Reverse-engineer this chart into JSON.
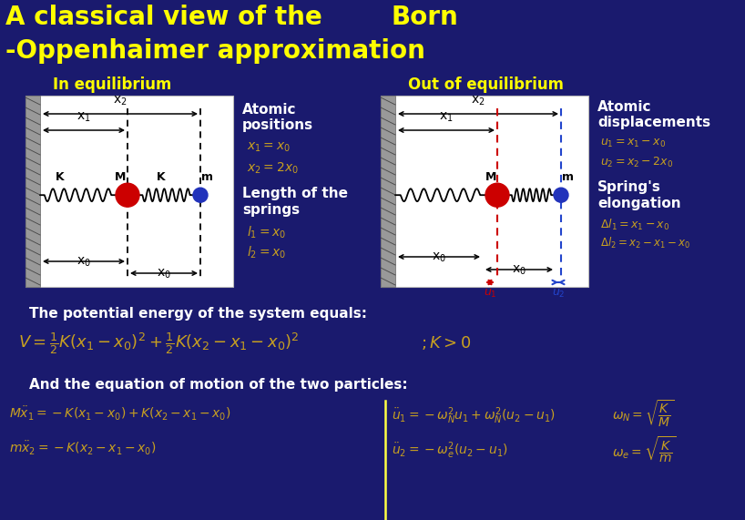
{
  "bg_color": "#1a1a6e",
  "title_line1": "A classical view of the",
  "title_line2": "-Oppenhaimer approximation",
  "title_right": "Born",
  "title_color": "#ffff00",
  "title_fontsize": 20,
  "subtitle_color": "#ffff00",
  "eq_label": "In equilibrium",
  "out_label": "Out of equilibrium",
  "text_white": "#ffffff",
  "text_gold": "#c8a020",
  "text_black": "#000000",
  "red_color": "#cc0000",
  "blue_color": "#2233bb",
  "red_dashed": "#cc0000",
  "blue_dashed": "#2244cc"
}
